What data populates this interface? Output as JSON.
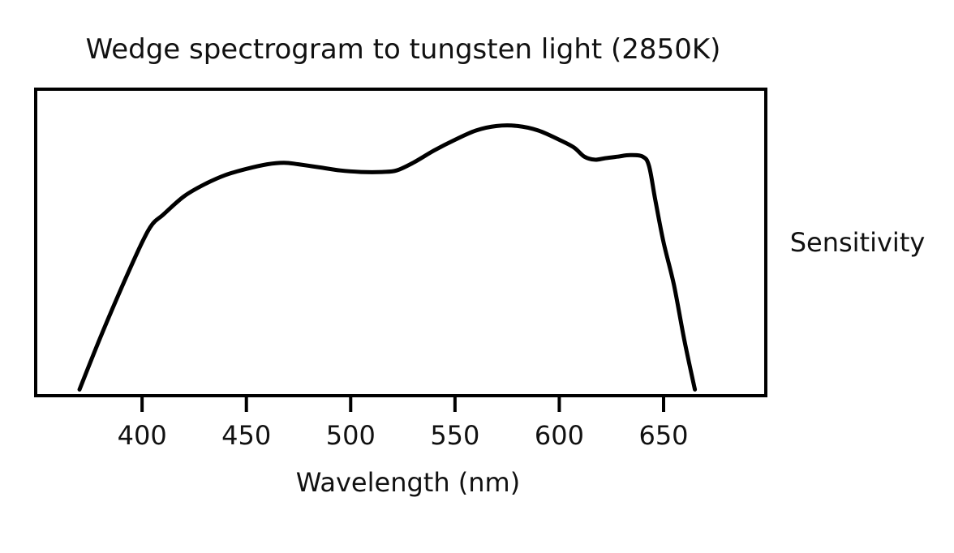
{
  "chart_data": {
    "type": "line",
    "title": "Wedge spectrogram to tungsten light (2850K)",
    "xlabel": "Wavelength (nm)",
    "ylabel": "Sensitivity",
    "xlim": [
      349,
      699
    ],
    "ylim": [
      0,
      1
    ],
    "xticks": [
      400,
      450,
      500,
      550,
      600,
      650
    ],
    "xtick_labels": [
      "400",
      "450",
      "500",
      "550",
      "600",
      "650"
    ],
    "grid": false,
    "legend": "none",
    "line_color": "#000000",
    "series": [
      {
        "x": [
          370,
          380,
          390,
          400,
          405,
          410,
          420,
          430,
          440,
          450,
          460,
          468,
          475,
          485,
          495,
          505,
          515,
          522,
          530,
          540,
          550,
          560,
          570,
          580,
          590,
          600,
          607,
          612,
          617,
          622,
          628,
          634,
          640,
          643,
          646,
          650,
          655,
          660,
          665
        ],
        "y": [
          0.02,
          0.19,
          0.35,
          0.5,
          0.56,
          0.59,
          0.65,
          0.69,
          0.72,
          0.74,
          0.755,
          0.76,
          0.755,
          0.745,
          0.735,
          0.73,
          0.73,
          0.735,
          0.76,
          0.8,
          0.835,
          0.865,
          0.88,
          0.88,
          0.865,
          0.835,
          0.81,
          0.78,
          0.77,
          0.775,
          0.78,
          0.785,
          0.78,
          0.75,
          0.64,
          0.5,
          0.36,
          0.18,
          0.02
        ]
      }
    ]
  }
}
